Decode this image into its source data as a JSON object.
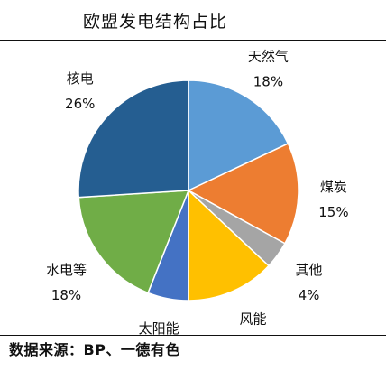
{
  "chart_data": {
    "type": "pie",
    "title": "欧盟发电结构占比",
    "slices": [
      {
        "name": "天然气",
        "value": 18,
        "label": "18%",
        "color": "#5b9bd5"
      },
      {
        "name": "煤炭",
        "value": 15,
        "label": "15%",
        "color": "#ed7d31"
      },
      {
        "name": "其他",
        "value": 4,
        "label": "4%",
        "color": "#a5a5a5"
      },
      {
        "name": "风能",
        "value": 13,
        "label": "13%",
        "color": "#ffc000"
      },
      {
        "name": "太阳能",
        "value": 6,
        "label": "6%",
        "color": "#4472c4"
      },
      {
        "name": "水电等",
        "value": 18,
        "label": "18%",
        "color": "#70ad47"
      },
      {
        "name": "核电",
        "value": 26,
        "label": "26%",
        "color": "#255e91"
      }
    ],
    "start_angle": "12 o'clock",
    "direction": "clockwise",
    "legend": "none"
  },
  "source": "数据来源：BP、一德有色"
}
